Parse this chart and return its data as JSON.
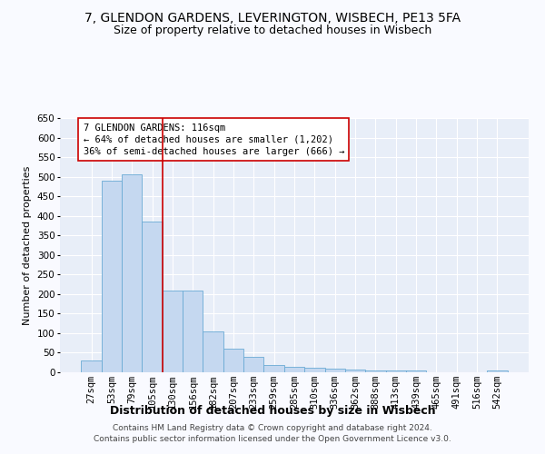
{
  "title": "7, GLENDON GARDENS, LEVERINGTON, WISBECH, PE13 5FA",
  "subtitle": "Size of property relative to detached houses in Wisbech",
  "xlabel": "Distribution of detached houses by size in Wisbech",
  "ylabel": "Number of detached properties",
  "categories": [
    "27sqm",
    "53sqm",
    "79sqm",
    "105sqm",
    "130sqm",
    "156sqm",
    "182sqm",
    "207sqm",
    "233sqm",
    "259sqm",
    "285sqm",
    "310sqm",
    "336sqm",
    "362sqm",
    "388sqm",
    "413sqm",
    "439sqm",
    "465sqm",
    "491sqm",
    "516sqm",
    "542sqm"
  ],
  "values": [
    30,
    490,
    505,
    385,
    208,
    208,
    105,
    60,
    40,
    18,
    14,
    12,
    10,
    8,
    5,
    5,
    4,
    1,
    1,
    1,
    4
  ],
  "bar_color": "#c5d8f0",
  "bar_edge_color": "#6aaad4",
  "vline_x": 3.5,
  "vline_color": "#cc0000",
  "annotation_text_line1": "7 GLENDON GARDENS: 116sqm",
  "annotation_text_line2": "← 64% of detached houses are smaller (1,202)",
  "annotation_text_line3": "36% of semi-detached houses are larger (666) →",
  "annotation_box_color": "#cc0000",
  "ylim": [
    0,
    650
  ],
  "yticks": [
    0,
    50,
    100,
    150,
    200,
    250,
    300,
    350,
    400,
    450,
    500,
    550,
    600,
    650
  ],
  "footer_line1": "Contains HM Land Registry data © Crown copyright and database right 2024.",
  "footer_line2": "Contains public sector information licensed under the Open Government Licence v3.0.",
  "fig_background_color": "#f9faff",
  "plot_background_color": "#e8eef8",
  "grid_color": "#ffffff",
  "title_fontsize": 10,
  "subtitle_fontsize": 9,
  "xlabel_fontsize": 9,
  "ylabel_fontsize": 8,
  "tick_fontsize": 7.5,
  "annotation_fontsize": 7.5,
  "footer_fontsize": 6.5
}
